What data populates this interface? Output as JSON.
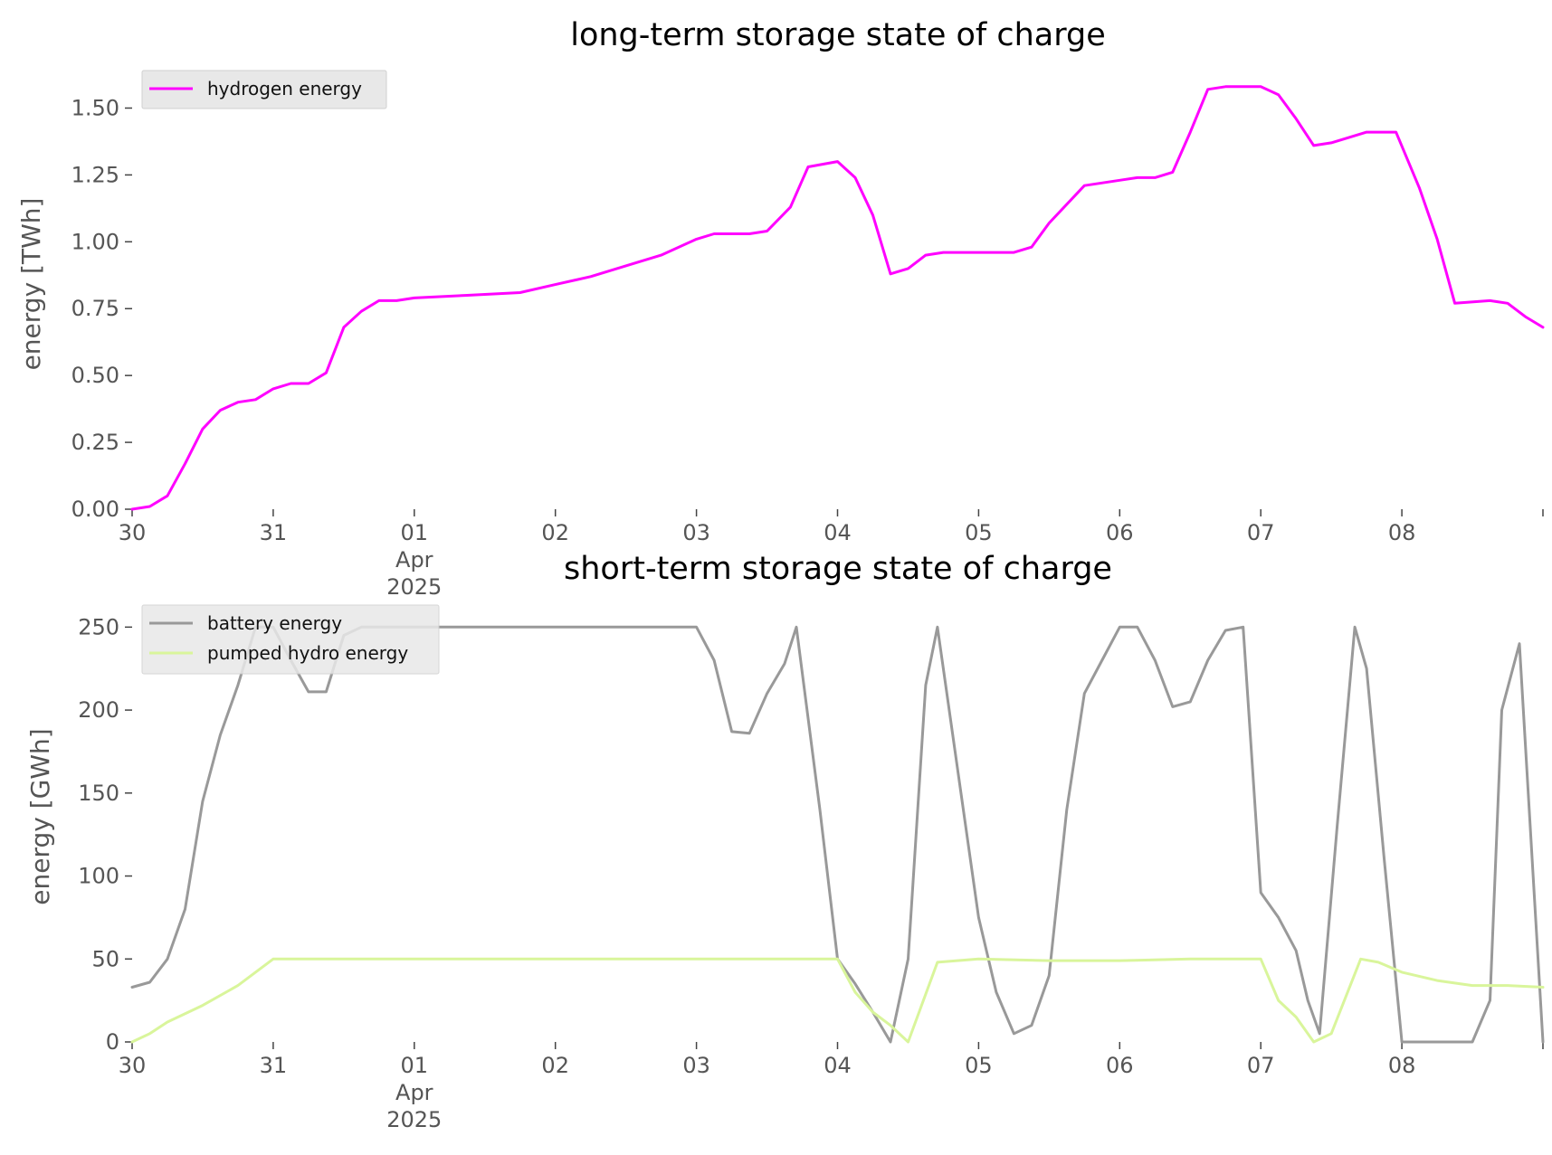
{
  "chart_data": [
    {
      "type": "line",
      "title": "long-term storage state of charge",
      "xlabel": "",
      "ylabel": "energy [TWh]",
      "ylim": [
        0,
        1.62
      ],
      "yticks": [
        "0.00",
        "0.25",
        "0.50",
        "0.75",
        "1.00",
        "1.25",
        "1.50"
      ],
      "ytick_values": [
        0,
        0.25,
        0.5,
        0.75,
        1.0,
        1.25,
        1.5
      ],
      "xlim": [
        "2025-03-30",
        "2025-04-09"
      ],
      "xticks": [
        {
          "date": "2025-03-30",
          "label": "30"
        },
        {
          "date": "2025-03-31",
          "label": "31"
        },
        {
          "date": "2025-04-01",
          "label": "01",
          "sub": [
            "Apr",
            "2025"
          ]
        },
        {
          "date": "2025-04-02",
          "label": "02"
        },
        {
          "date": "2025-04-03",
          "label": "03"
        },
        {
          "date": "2025-04-04",
          "label": "04"
        },
        {
          "date": "2025-04-05",
          "label": "05"
        },
        {
          "date": "2025-04-06",
          "label": "06"
        },
        {
          "date": "2025-04-07",
          "label": "07"
        },
        {
          "date": "2025-04-08",
          "label": "08"
        }
      ],
      "grid": false,
      "legend_position": "top-left",
      "series": [
        {
          "name": "hydrogen energy",
          "color": "#ff00ff",
          "x": [
            "2025-03-30 00:00",
            "2025-03-30 03:00",
            "2025-03-30 06:00",
            "2025-03-30 09:00",
            "2025-03-30 12:00",
            "2025-03-30 15:00",
            "2025-03-30 18:00",
            "2025-03-30 21:00",
            "2025-03-31 00:00",
            "2025-03-31 03:00",
            "2025-03-31 06:00",
            "2025-03-31 09:00",
            "2025-03-31 12:00",
            "2025-03-31 15:00",
            "2025-03-31 18:00",
            "2025-03-31 21:00",
            "2025-04-01 00:00",
            "2025-04-01 09:00",
            "2025-04-01 18:00",
            "2025-04-02 00:00",
            "2025-04-02 06:00",
            "2025-04-02 12:00",
            "2025-04-02 18:00",
            "2025-04-03 00:00",
            "2025-04-03 03:00",
            "2025-04-03 09:00",
            "2025-04-03 12:00",
            "2025-04-03 16:00",
            "2025-04-03 19:00",
            "2025-04-04 00:00",
            "2025-04-04 03:00",
            "2025-04-04 06:00",
            "2025-04-04 09:00",
            "2025-04-04 12:00",
            "2025-04-04 15:00",
            "2025-04-04 18:00",
            "2025-04-05 00:00",
            "2025-04-05 06:00",
            "2025-04-05 09:00",
            "2025-04-05 12:00",
            "2025-04-05 18:00",
            "2025-04-06 00:00",
            "2025-04-06 03:00",
            "2025-04-06 06:00",
            "2025-04-06 09:00",
            "2025-04-06 12:00",
            "2025-04-06 15:00",
            "2025-04-06 18:00",
            "2025-04-07 00:00",
            "2025-04-07 03:00",
            "2025-04-07 06:00",
            "2025-04-07 09:00",
            "2025-04-07 12:00",
            "2025-04-07 18:00",
            "2025-04-07 23:00",
            "2025-04-08 03:00",
            "2025-04-08 06:00",
            "2025-04-08 09:00",
            "2025-04-08 15:00",
            "2025-04-08 18:00",
            "2025-04-08 21:00",
            "2025-04-09 00:00"
          ],
          "y": [
            0.0,
            0.01,
            0.05,
            0.17,
            0.3,
            0.37,
            0.4,
            0.41,
            0.45,
            0.47,
            0.47,
            0.51,
            0.68,
            0.74,
            0.78,
            0.78,
            0.79,
            0.8,
            0.81,
            0.84,
            0.87,
            0.91,
            0.95,
            1.01,
            1.03,
            1.03,
            1.04,
            1.13,
            1.28,
            1.3,
            1.24,
            1.1,
            0.88,
            0.9,
            0.95,
            0.96,
            0.96,
            0.96,
            0.98,
            1.07,
            1.21,
            1.23,
            1.24,
            1.24,
            1.26,
            1.41,
            1.57,
            1.58,
            1.58,
            1.55,
            1.46,
            1.36,
            1.37,
            1.41,
            1.41,
            1.2,
            1.01,
            0.77,
            0.78,
            0.77,
            0.72,
            0.68
          ]
        }
      ]
    },
    {
      "type": "line",
      "title": "short-term storage state of charge",
      "xlabel": "",
      "ylabel": "energy [GWh]",
      "ylim": [
        0,
        260
      ],
      "yticks": [
        "0",
        "50",
        "100",
        "150",
        "200",
        "250"
      ],
      "ytick_values": [
        0,
        50,
        100,
        150,
        200,
        250
      ],
      "xlim": [
        "2025-03-30",
        "2025-04-09"
      ],
      "xticks": [
        {
          "date": "2025-03-30",
          "label": "30"
        },
        {
          "date": "2025-03-31",
          "label": "31"
        },
        {
          "date": "2025-04-01",
          "label": "01",
          "sub": [
            "Apr",
            "2025"
          ]
        },
        {
          "date": "2025-04-02",
          "label": "02"
        },
        {
          "date": "2025-04-03",
          "label": "03"
        },
        {
          "date": "2025-04-04",
          "label": "04"
        },
        {
          "date": "2025-04-05",
          "label": "05"
        },
        {
          "date": "2025-04-06",
          "label": "06"
        },
        {
          "date": "2025-04-07",
          "label": "07"
        },
        {
          "date": "2025-04-08",
          "label": "08"
        }
      ],
      "grid": false,
      "legend_position": "top-left",
      "series": [
        {
          "name": "battery energy",
          "color": "#999999",
          "x": [
            "2025-03-30 00:00",
            "2025-03-30 03:00",
            "2025-03-30 06:00",
            "2025-03-30 09:00",
            "2025-03-30 12:00",
            "2025-03-30 15:00",
            "2025-03-30 18:00",
            "2025-03-30 21:00",
            "2025-03-31 00:00",
            "2025-03-31 03:00",
            "2025-03-31 06:00",
            "2025-03-31 09:00",
            "2025-03-31 12:00",
            "2025-03-31 15:00",
            "2025-03-31 18:00",
            "2025-03-31 21:00",
            "2025-04-01 00:00",
            "2025-04-02 00:00",
            "2025-04-03 00:00",
            "2025-04-03 03:00",
            "2025-04-03 06:00",
            "2025-04-03 09:00",
            "2025-04-03 12:00",
            "2025-04-03 15:00",
            "2025-04-03 17:00",
            "2025-04-03 21:00",
            "2025-04-04 00:00",
            "2025-04-04 03:00",
            "2025-04-04 06:00",
            "2025-04-04 09:00",
            "2025-04-04 12:00",
            "2025-04-04 15:00",
            "2025-04-04 17:00",
            "2025-04-04 21:00",
            "2025-04-05 00:00",
            "2025-04-05 03:00",
            "2025-04-05 06:00",
            "2025-04-05 09:00",
            "2025-04-05 12:00",
            "2025-04-05 15:00",
            "2025-04-05 18:00",
            "2025-04-05 21:00",
            "2025-04-06 00:00",
            "2025-04-06 03:00",
            "2025-04-06 06:00",
            "2025-04-06 09:00",
            "2025-04-06 12:00",
            "2025-04-06 15:00",
            "2025-04-06 18:00",
            "2025-04-06 21:00",
            "2025-04-07 00:00",
            "2025-04-07 03:00",
            "2025-04-07 06:00",
            "2025-04-07 08:00",
            "2025-04-07 10:00",
            "2025-04-07 13:00",
            "2025-04-07 16:00",
            "2025-04-07 18:00",
            "2025-04-07 21:00",
            "2025-04-08 00:00",
            "2025-04-08 03:00",
            "2025-04-08 09:00",
            "2025-04-08 12:00",
            "2025-04-08 15:00",
            "2025-04-08 17:00",
            "2025-04-08 20:00",
            "2025-04-09 00:00"
          ],
          "y": [
            33,
            36,
            50,
            80,
            145,
            185,
            215,
            250,
            250,
            230,
            211,
            211,
            245,
            250,
            250,
            250,
            250,
            250,
            250,
            230,
            187,
            186,
            210,
            228,
            250,
            140,
            50,
            35,
            18,
            0,
            50,
            215,
            250,
            150,
            75,
            30,
            5,
            10,
            40,
            140,
            210,
            230,
            250,
            250,
            230,
            202,
            205,
            230,
            248,
            250,
            90,
            75,
            55,
            25,
            5,
            130,
            250,
            225,
            110,
            0,
            0,
            0,
            0,
            25,
            200,
            240,
            0
          ]
        },
        {
          "name": "pumped hydro energy",
          "color": "#d9f59b",
          "x": [
            "2025-03-30 00:00",
            "2025-03-30 03:00",
            "2025-03-30 06:00",
            "2025-03-30 12:00",
            "2025-03-30 18:00",
            "2025-03-31 00:00",
            "2025-04-01 00:00",
            "2025-04-02 00:00",
            "2025-04-03 00:00",
            "2025-04-03 12:00",
            "2025-04-04 00:00",
            "2025-04-04 03:00",
            "2025-04-04 06:00",
            "2025-04-04 09:00",
            "2025-04-04 12:00",
            "2025-04-04 17:00",
            "2025-04-05 00:00",
            "2025-04-05 12:00",
            "2025-04-06 00:00",
            "2025-04-06 12:00",
            "2025-04-07 00:00",
            "2025-04-07 03:00",
            "2025-04-07 06:00",
            "2025-04-07 09:00",
            "2025-04-07 12:00",
            "2025-04-07 17:00",
            "2025-04-07 20:00",
            "2025-04-08 00:00",
            "2025-04-08 06:00",
            "2025-04-08 12:00",
            "2025-04-08 18:00",
            "2025-04-09 00:00"
          ],
          "y": [
            0,
            5,
            12,
            22,
            34,
            50,
            50,
            50,
            50,
            50,
            50,
            30,
            18,
            10,
            0,
            48,
            50,
            49,
            49,
            50,
            50,
            25,
            15,
            0,
            5,
            50,
            48,
            42,
            37,
            34,
            34,
            33
          ]
        }
      ]
    }
  ]
}
